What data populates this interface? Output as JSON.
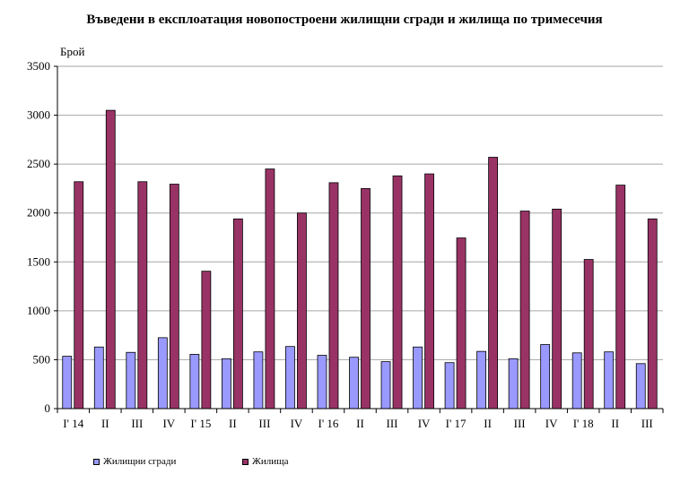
{
  "chart_data": {
    "type": "bar",
    "title": "Въведени в експлоатация новопостроени жилищни сгради и жилища по тримесечия",
    "ylabel": "Брой",
    "xlabel": "",
    "ylim": [
      0,
      3500
    ],
    "yticks": [
      0,
      500,
      1000,
      1500,
      2000,
      2500,
      3000,
      3500
    ],
    "grid": true,
    "legend_position": "bottom-left",
    "categories": [
      "I' 14",
      "II",
      "III",
      "IV",
      "I' 15",
      "II",
      "III",
      "IV",
      "I' 16",
      "II",
      "III",
      "IV",
      "I' 17",
      "II",
      "III",
      "IV",
      "I' 18",
      "II",
      "III"
    ],
    "series": [
      {
        "name": "Жилищни сгради",
        "color": "#9999ff",
        "values": [
          535,
          630,
          575,
          725,
          555,
          510,
          580,
          635,
          545,
          525,
          480,
          630,
          470,
          585,
          510,
          655,
          570,
          580,
          460
        ]
      },
      {
        "name": "Жилища",
        "color": "#993366",
        "values": [
          2320,
          3050,
          2320,
          2295,
          1405,
          1940,
          2450,
          2000,
          2310,
          2250,
          2380,
          2400,
          1745,
          2570,
          2020,
          2040,
          1525,
          2285,
          1940
        ]
      }
    ]
  }
}
